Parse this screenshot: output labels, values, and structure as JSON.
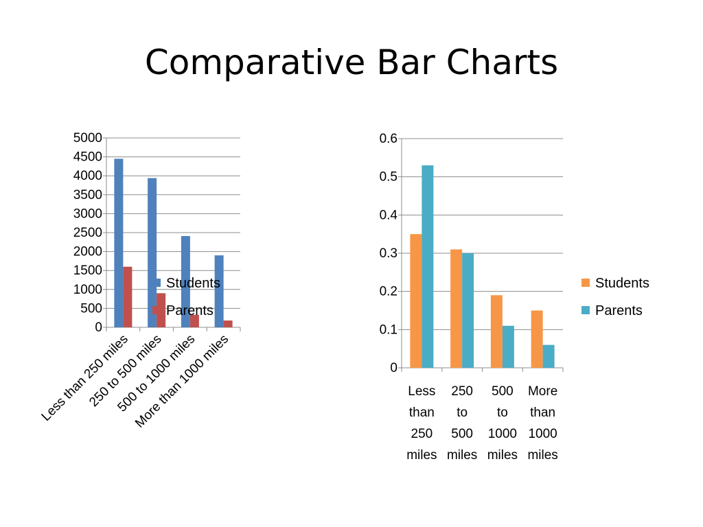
{
  "slide": {
    "title": "Comparative Bar Charts"
  },
  "chart_data": [
    {
      "type": "bar",
      "categories": [
        "Less than 250 miles",
        "250 to 500 miles",
        "500 to 1000 miles",
        "More than 1000 miles"
      ],
      "series": [
        {
          "name": "Students",
          "values": [
            4450,
            3940,
            2410,
            1900
          ],
          "color": "#4F81BD"
        },
        {
          "name": "Parents",
          "values": [
            1600,
            900,
            330,
            180
          ],
          "color": "#C0504D"
        }
      ],
      "ylim": [
        0,
        5000
      ],
      "yticks": [
        "0",
        "500",
        "1000",
        "1500",
        "2000",
        "2500",
        "3000",
        "3500",
        "4000",
        "4500",
        "5000"
      ],
      "grid": true,
      "legend": "right",
      "xlabel_style": "rotated"
    },
    {
      "type": "bar",
      "categories": [
        "Less than 250 miles",
        "250 to 500 miles",
        "500 to 1000 miles",
        "More than 1000 miles"
      ],
      "category_lines": [
        [
          "Less",
          "than",
          "250",
          "miles"
        ],
        [
          "250",
          "to",
          "500",
          "miles"
        ],
        [
          "500",
          "to",
          "1000",
          "miles"
        ],
        [
          "More",
          "than",
          "1000",
          "miles"
        ]
      ],
      "series": [
        {
          "name": "Students",
          "values": [
            0.35,
            0.31,
            0.19,
            0.15
          ],
          "color": "#F79646"
        },
        {
          "name": "Parents",
          "values": [
            0.53,
            0.3,
            0.11,
            0.06
          ],
          "color": "#4BACC6"
        }
      ],
      "ylim": [
        0,
        0.6
      ],
      "yticks": [
        "0",
        "0.1",
        "0.2",
        "0.3",
        "0.4",
        "0.5",
        "0.6"
      ],
      "grid": true,
      "legend": "right",
      "xlabel_style": "wrapped"
    }
  ]
}
